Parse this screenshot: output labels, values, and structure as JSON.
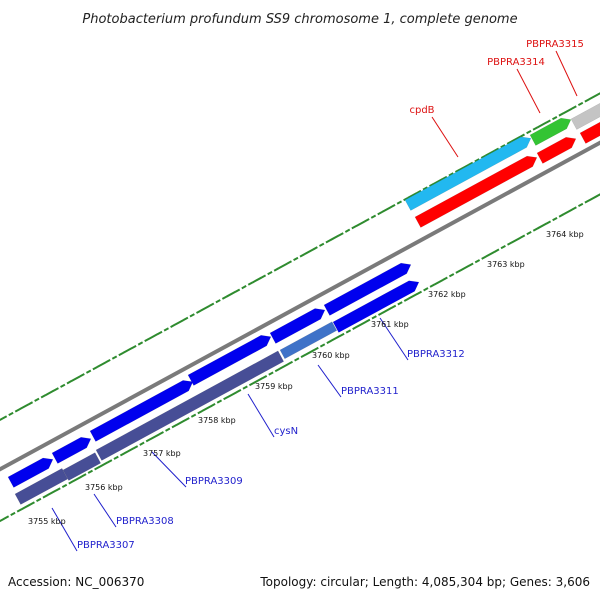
{
  "title": "Photobacterium profundum SS9 chromosome 1, complete genome",
  "accession_text": "Accession: NC_006370",
  "summary_text": "Topology: circular; Length: 4,085,304 bp; Genes: 3,606",
  "colors": {
    "backbone": "#888888",
    "tick": "#2e8b2e",
    "forward_cds": "#0000ee",
    "reverse_cds": "#474e96",
    "forward_label": "#1f1fcc",
    "reverse_label": "#dd1111",
    "red_gene": "#ff0000",
    "cyan_gene": "#22b8f0",
    "green_gene": "#33c433",
    "grey_gene": "#c4c4c4"
  },
  "scale_labels": [
    "3755 kbp",
    "3756 kbp",
    "3757 kbp",
    "3758 kbp",
    "3759 kbp",
    "3760 kbp",
    "3761 kbp",
    "3762 kbp",
    "3763 kbp",
    "3764 kbp"
  ],
  "genes": [
    {
      "name": "PBPRA3307",
      "color_key": "forward_label"
    },
    {
      "name": "PBPRA3308",
      "color_key": "forward_label"
    },
    {
      "name": "PBPRA3309",
      "color_key": "forward_label"
    },
    {
      "name": "cysN",
      "color_key": "forward_label"
    },
    {
      "name": "PBPRA3311",
      "color_key": "forward_label"
    },
    {
      "name": "PBPRA3312",
      "color_key": "forward_label"
    },
    {
      "name": "cpdB",
      "color_key": "reverse_label"
    },
    {
      "name": "PBPRA3314",
      "color_key": "reverse_label"
    },
    {
      "name": "PBPRA3315",
      "color_key": "reverse_label"
    }
  ]
}
